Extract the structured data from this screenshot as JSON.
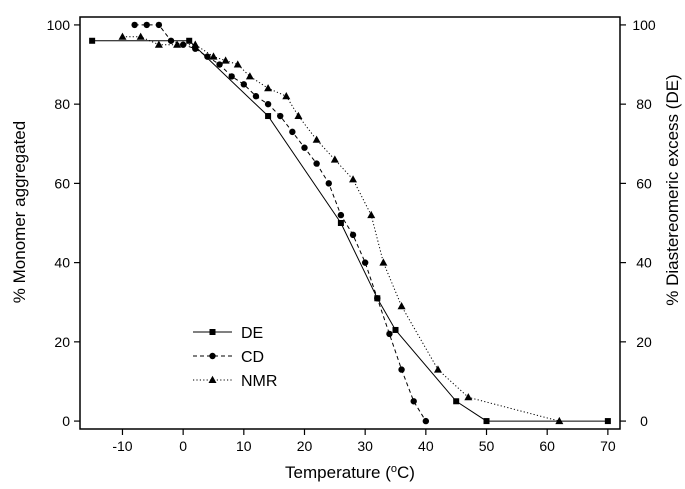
{
  "chart_data": {
    "type": "line",
    "xlabel": "Temperature (°C)",
    "ylabel_left": "% Monomer aggregated",
    "ylabel_right": "% Diastereomeric excess (DE)",
    "xlim": [
      -17,
      72
    ],
    "ylim": [
      -2,
      102
    ],
    "x_ticks": [
      -10,
      0,
      10,
      20,
      30,
      40,
      50,
      60,
      70
    ],
    "y_ticks": [
      0,
      20,
      40,
      60,
      80,
      100
    ],
    "grid": false,
    "legend_position": "lower-left",
    "series": [
      {
        "name": "DE",
        "marker": "square",
        "line_style": "solid",
        "points": [
          [
            -15,
            96
          ],
          [
            1,
            96
          ],
          [
            14,
            77
          ],
          [
            26,
            50
          ],
          [
            32,
            31
          ],
          [
            35,
            23
          ],
          [
            45,
            5
          ],
          [
            50,
            0
          ],
          [
            70,
            0
          ]
        ]
      },
      {
        "name": "CD",
        "marker": "circle",
        "line_style": "dashed",
        "points": [
          [
            -8,
            100
          ],
          [
            -6,
            100
          ],
          [
            -4,
            100
          ],
          [
            -2,
            96
          ],
          [
            0,
            95
          ],
          [
            2,
            94
          ],
          [
            4,
            92
          ],
          [
            6,
            90
          ],
          [
            8,
            87
          ],
          [
            10,
            85
          ],
          [
            12,
            82
          ],
          [
            14,
            80
          ],
          [
            16,
            77
          ],
          [
            18,
            73
          ],
          [
            20,
            69
          ],
          [
            22,
            65
          ],
          [
            24,
            60
          ],
          [
            26,
            52
          ],
          [
            28,
            47
          ],
          [
            30,
            40
          ],
          [
            32,
            31
          ],
          [
            34,
            22
          ],
          [
            36,
            13
          ],
          [
            38,
            5
          ],
          [
            40,
            0
          ]
        ]
      },
      {
        "name": "NMR",
        "marker": "triangle",
        "line_style": "dotted",
        "points": [
          [
            -10,
            97
          ],
          [
            -7,
            97
          ],
          [
            -4,
            95
          ],
          [
            -1,
            95
          ],
          [
            2,
            95
          ],
          [
            5,
            92
          ],
          [
            7,
            91
          ],
          [
            9,
            90
          ],
          [
            11,
            87
          ],
          [
            14,
            84
          ],
          [
            17,
            82
          ],
          [
            19,
            77
          ],
          [
            22,
            71
          ],
          [
            25,
            66
          ],
          [
            28,
            61
          ],
          [
            31,
            52
          ],
          [
            33,
            40
          ],
          [
            36,
            29
          ],
          [
            42,
            13
          ],
          [
            47,
            6
          ],
          [
            62,
            0
          ]
        ]
      }
    ]
  }
}
